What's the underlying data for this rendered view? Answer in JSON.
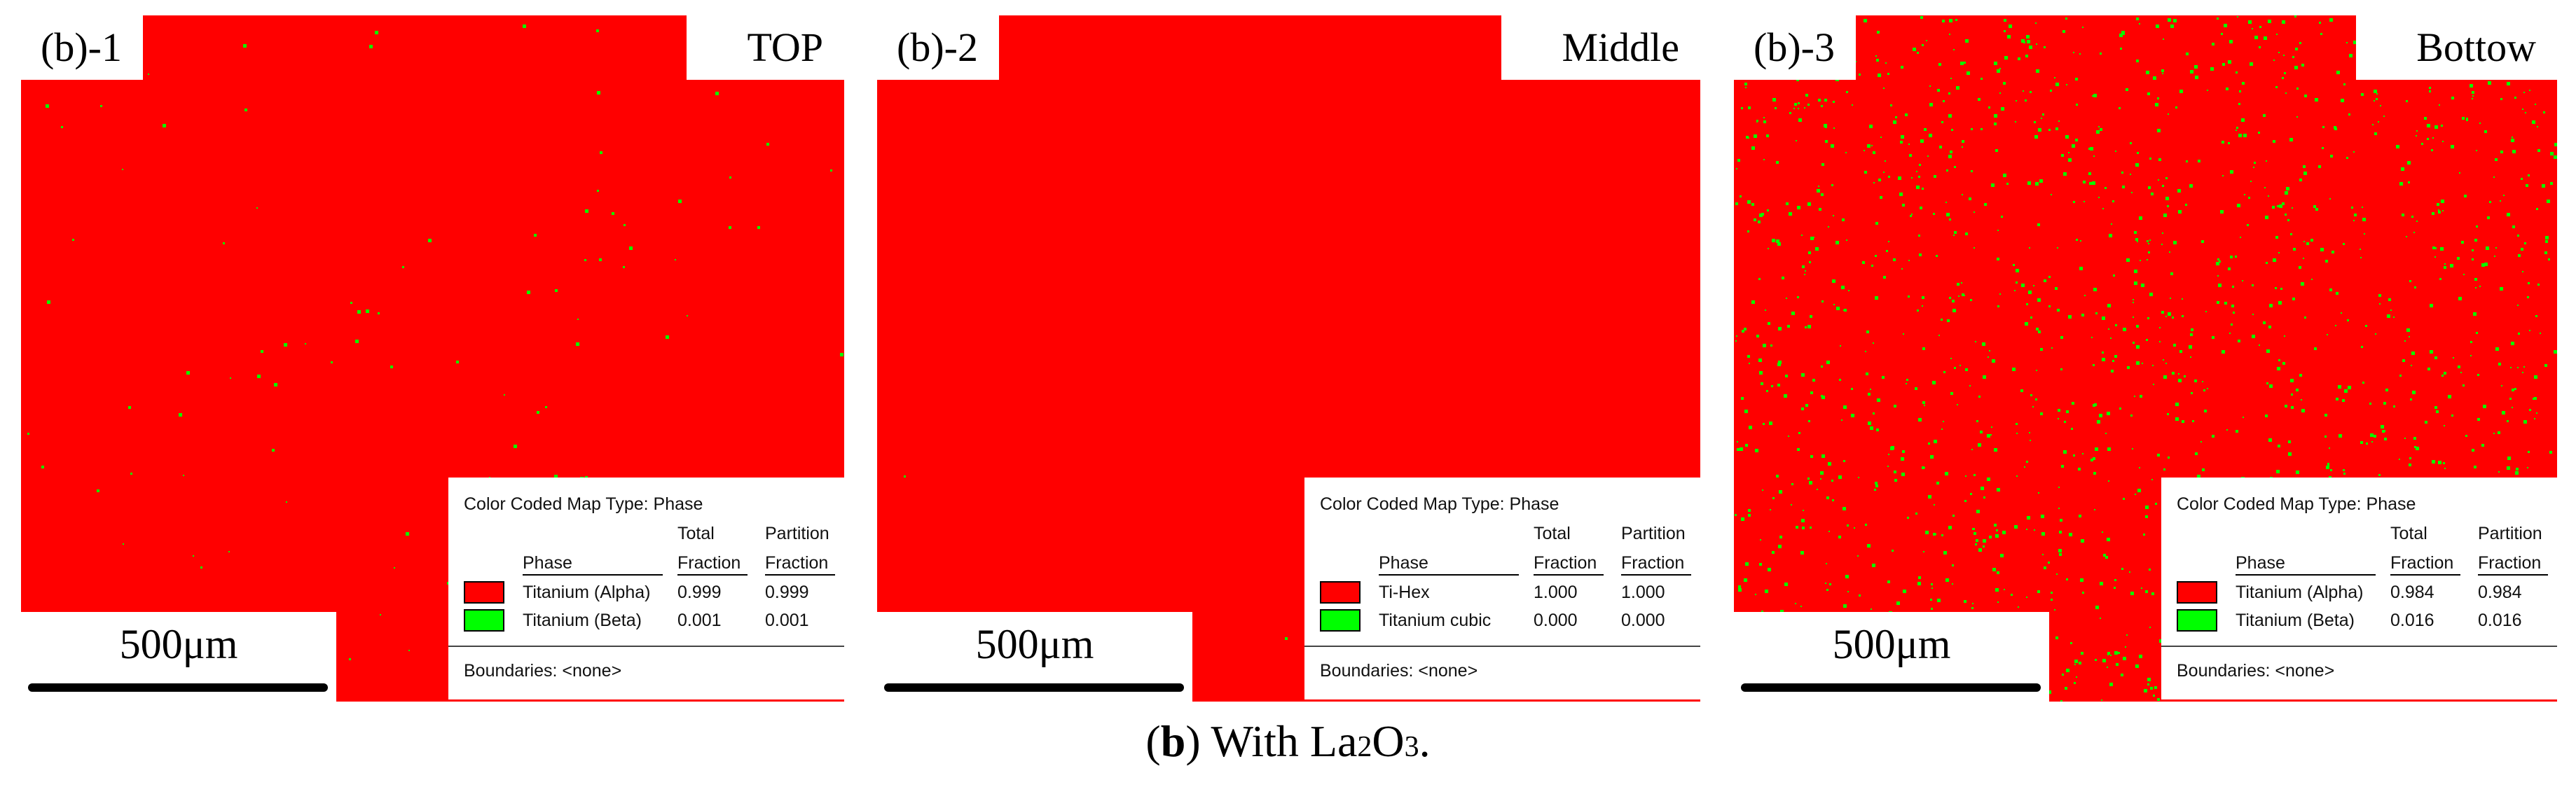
{
  "colors": {
    "alpha_phase": "#ff0000",
    "beta_phase": "#00ff00",
    "background": "#ffffff"
  },
  "panels": [
    {
      "label": "(b)-1",
      "position_label": "TOP",
      "scale_label": "500μm",
      "legend": {
        "map_type": "Color Coded Map Type: Phase",
        "header_phase": "Phase",
        "header_total_1": "Total",
        "header_total_2": "Fraction",
        "header_partition_1": "Partition",
        "header_partition_2": "Fraction",
        "rows": [
          {
            "phase": "Titanium (Alpha)",
            "color": "#ff0000",
            "total": "0.999",
            "partition": "0.999"
          },
          {
            "phase": "Titanium (Beta)",
            "color": "#00ff00",
            "total": "0.001",
            "partition": "0.001"
          }
        ],
        "boundaries": "Boundaries: <none>"
      },
      "green_density": 0.001
    },
    {
      "label": "(b)-2",
      "position_label": "Middle",
      "scale_label": "500μm",
      "legend": {
        "map_type": "Color Coded Map Type: Phase",
        "header_phase": "Phase",
        "header_total_1": "Total",
        "header_total_2": "Fraction",
        "header_partition_1": "Partition",
        "header_partition_2": "Fraction",
        "rows": [
          {
            "phase": "Ti-Hex",
            "color": "#ff0000",
            "total": "1.000",
            "partition": "1.000"
          },
          {
            "phase": "Titanium cubic",
            "color": "#00ff00",
            "total": "0.000",
            "partition": "0.000"
          }
        ],
        "boundaries": "Boundaries: <none>"
      },
      "green_density": 0.0
    },
    {
      "label": "(b)-3",
      "position_label": "Bottow",
      "scale_label": "500μm",
      "legend": {
        "map_type": "Color Coded Map Type: Phase",
        "header_phase": "Phase",
        "header_total_1": "Total",
        "header_total_2": "Fraction",
        "header_partition_1": "Partition",
        "header_partition_2": "Fraction",
        "rows": [
          {
            "phase": "Titanium (Alpha)",
            "color": "#ff0000",
            "total": "0.984",
            "partition": "0.984"
          },
          {
            "phase": "Titanium (Beta)",
            "color": "#00ff00",
            "total": "0.016",
            "partition": "0.016"
          }
        ],
        "boundaries": "Boundaries: <none>"
      },
      "green_density": 0.016
    }
  ],
  "caption": {
    "letter": "b",
    "text_before": "With La",
    "sub1": "2",
    "text_mid": "O",
    "sub2": "3",
    "text_end": "."
  }
}
